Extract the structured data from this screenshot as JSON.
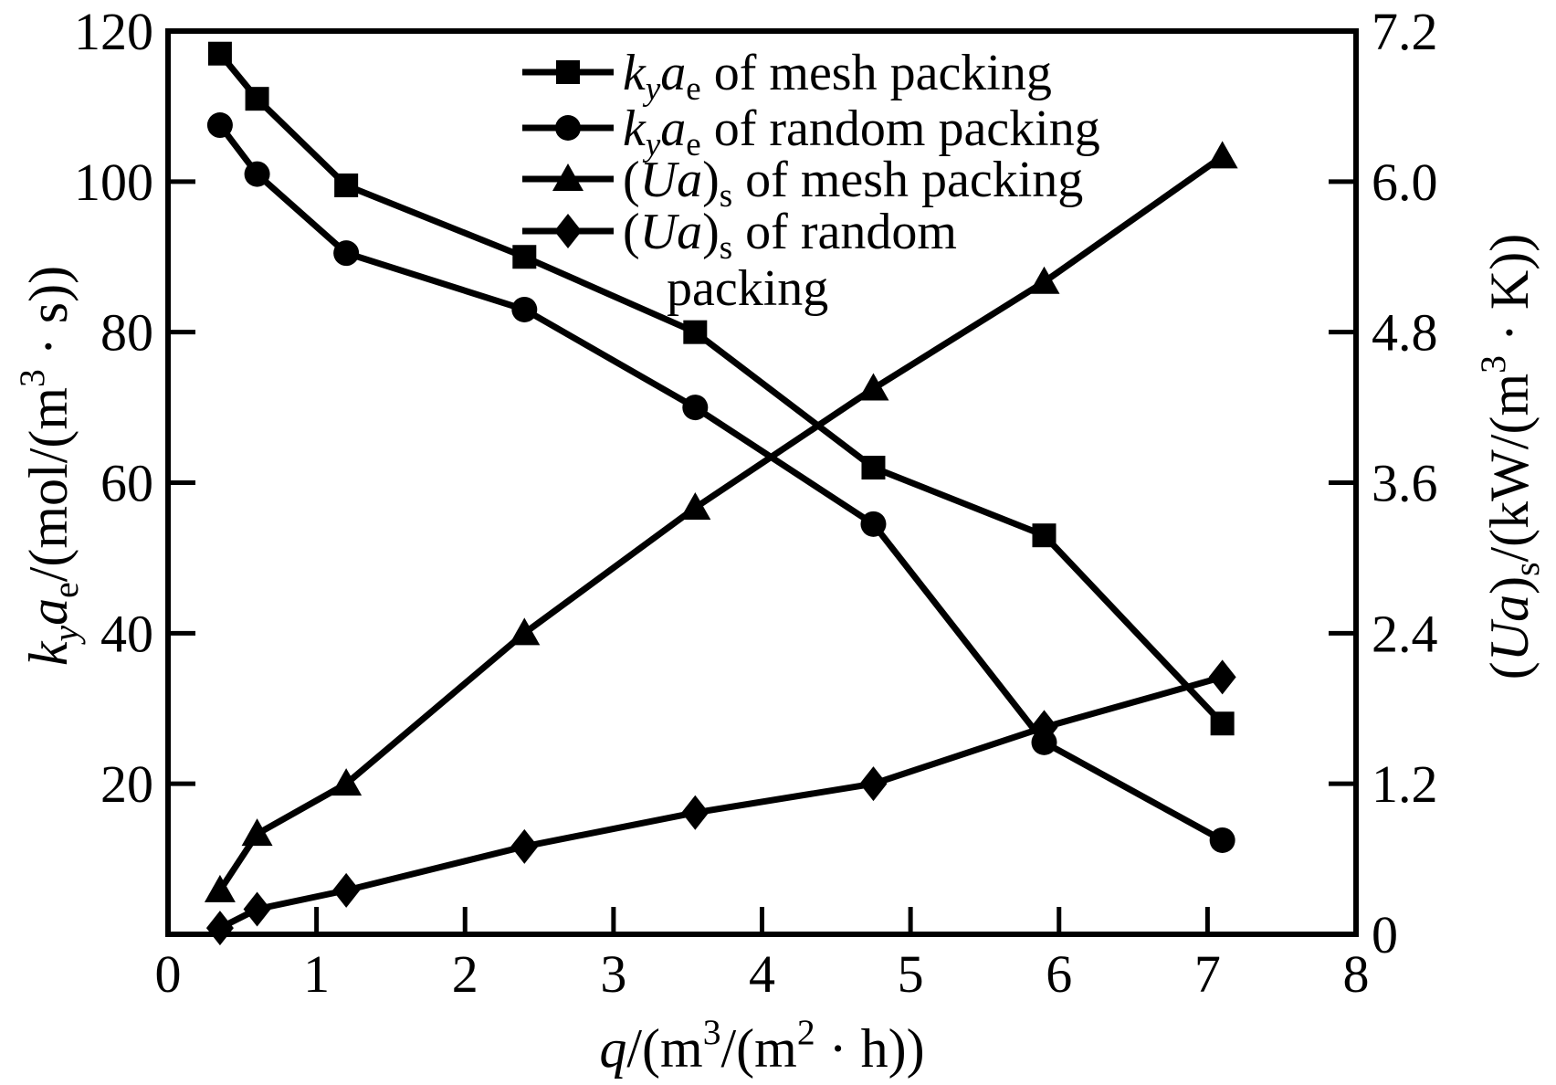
{
  "chart_data": {
    "type": "line",
    "title": "",
    "x_values": [
      0.35,
      0.6,
      1.2,
      2.4,
      3.55,
      4.75,
      5.9,
      7.1
    ],
    "series": [
      {
        "id": "kya-mesh",
        "marker": "square",
        "axis": "left",
        "label_plain": "kyae of mesh packing",
        "label_segments": [
          {
            "t": "k",
            "i": 1
          },
          {
            "t": "y",
            "i": 1,
            "sub": 1
          },
          {
            "t": "a",
            "i": 1
          },
          {
            "t": "e",
            "sub": 1
          },
          {
            "t": " of mesh packing"
          }
        ],
        "values": [
          117,
          111,
          99.5,
          90,
          80,
          62,
          53,
          28
        ]
      },
      {
        "id": "kya-random",
        "marker": "circle",
        "axis": "left",
        "label_plain": "kyae of random packing",
        "label_segments": [
          {
            "t": "k",
            "i": 1
          },
          {
            "t": "y",
            "i": 1,
            "sub": 1
          },
          {
            "t": "a",
            "i": 1
          },
          {
            "t": "e",
            "sub": 1
          },
          {
            "t": " of random packing"
          }
        ],
        "values": [
          107.5,
          101,
          90.5,
          83,
          70,
          54.5,
          25.5,
          12.5
        ]
      },
      {
        "id": "ua-mesh",
        "marker": "triangle",
        "axis": "right",
        "label_plain": "(Ua)s of mesh packing",
        "label_segments": [
          {
            "t": "("
          },
          {
            "t": "U",
            "i": 1
          },
          {
            "t": "a",
            "i": 1
          },
          {
            "t": ")"
          },
          {
            "t": "s",
            "sub": 1
          },
          {
            "t": " of mesh packing"
          }
        ],
        "values": [
          0.35,
          0.8,
          1.2,
          2.4,
          3.4,
          4.35,
          5.2,
          6.2
        ]
      },
      {
        "id": "ua-random",
        "marker": "diamond",
        "axis": "right",
        "label_plain": "(Ua)s of random packing",
        "label_segments": [
          {
            "t": "("
          },
          {
            "t": "U",
            "i": 1
          },
          {
            "t": "a",
            "i": 1
          },
          {
            "t": ")"
          },
          {
            "t": "s",
            "sub": 1
          },
          {
            "t": " of random"
          }
        ],
        "label_segments_line2": [
          {
            "t": "packing"
          }
        ],
        "values": [
          0.05,
          0.2,
          0.35,
          0.7,
          0.97,
          1.2,
          1.65,
          2.05
        ]
      }
    ],
    "axes": {
      "x": {
        "min": 0,
        "max": 8,
        "ticks": [
          0,
          1,
          2,
          3,
          4,
          5,
          6,
          7,
          8
        ],
        "tick_labels": [
          "0",
          "1",
          "2",
          "3",
          "4",
          "5",
          "6",
          "7",
          "8"
        ],
        "label_plain": "q/(m3/(m2 · h))",
        "label_segments": [
          {
            "t": "q",
            "i": 1
          },
          {
            "t": "/(m"
          },
          {
            "t": "3",
            "sup": 1
          },
          {
            "t": "/(m"
          },
          {
            "t": "2",
            "sup": 1
          },
          {
            "t": " · h))"
          }
        ]
      },
      "y_left": {
        "min": 0,
        "max": 120,
        "ticks": [
          20,
          40,
          60,
          80,
          100,
          120
        ],
        "tick_labels": [
          "20",
          "40",
          "60",
          "80",
          "100",
          "120"
        ],
        "label_plain": "kyae/(mol/(m3 · s))",
        "label_segments": [
          {
            "t": "k",
            "i": 1
          },
          {
            "t": "y",
            "i": 1,
            "sub": 1
          },
          {
            "t": "a",
            "i": 1
          },
          {
            "t": "e",
            "sub": 1
          },
          {
            "t": "/(mol/(m"
          },
          {
            "t": "3",
            "sup": 1
          },
          {
            "t": " · s))"
          }
        ]
      },
      "y_right": {
        "min": 0,
        "max": 7.2,
        "ticks": [
          0,
          1.2,
          2.4,
          3.6,
          4.8,
          6.0,
          7.2
        ],
        "tick_labels": [
          "0",
          "1.2",
          "2.4",
          "3.6",
          "4.8",
          "6.0",
          "7.2"
        ],
        "label_plain": "(Ua)s/(kW/(m3 · K))",
        "label_segments": [
          {
            "t": "("
          },
          {
            "t": "U",
            "i": 1
          },
          {
            "t": "a",
            "i": 1
          },
          {
            "t": ")"
          },
          {
            "t": "s",
            "sub": 1
          },
          {
            "t": "/(kW/(m"
          },
          {
            "t": "3",
            "sup": 1
          },
          {
            "t": " · K))"
          }
        ]
      }
    },
    "legend": {
      "position": "top-center-inside",
      "has_frame": false
    },
    "grid": false,
    "colors": {
      "foreground": "#000000",
      "background": "#ffffff"
    }
  }
}
